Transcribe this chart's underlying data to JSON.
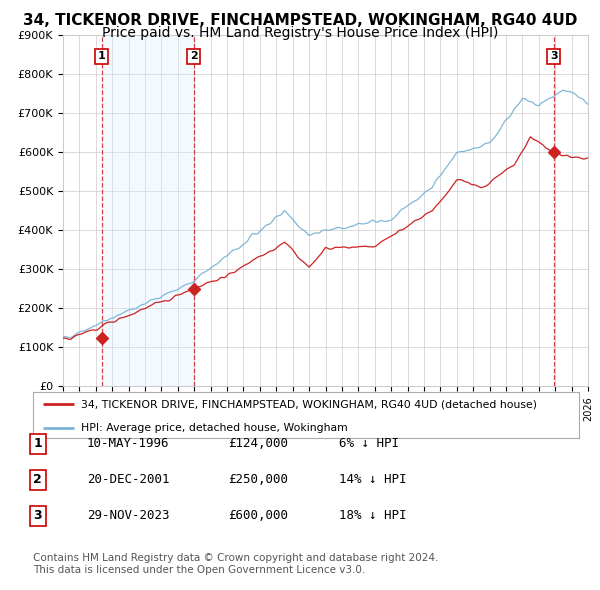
{
  "title": "34, TICKENOR DRIVE, FINCHAMPSTEAD, WOKINGHAM, RG40 4UD",
  "subtitle": "Price paid vs. HM Land Registry's House Price Index (HPI)",
  "ylim": [
    0,
    900000
  ],
  "xlim_start": 1994.0,
  "xlim_end": 2026.0,
  "yticks": [
    0,
    100000,
    200000,
    300000,
    400000,
    500000,
    600000,
    700000,
    800000,
    900000
  ],
  "ytick_labels": [
    "£0",
    "£100K",
    "£200K",
    "£300K",
    "£400K",
    "£500K",
    "£600K",
    "£700K",
    "£800K",
    "£900K"
  ],
  "sale_dates": [
    1996.36,
    2001.97,
    2023.91
  ],
  "sale_prices": [
    124000,
    250000,
    600000
  ],
  "sale_labels": [
    "1",
    "2",
    "3"
  ],
  "hpi_color": "#7ab3d4",
  "price_color": "#cc2222",
  "shade_color": "#ddeeff",
  "dashed_color": "#cc2222",
  "legend_line1": "34, TICKENOR DRIVE, FINCHAMPSTEAD, WOKINGHAM, RG40 4UD (detached house)",
  "legend_line2": "HPI: Average price, detached house, Wokingham",
  "table_rows": [
    [
      "1",
      "10-MAY-1996",
      "£124,000",
      "6% ↓ HPI"
    ],
    [
      "2",
      "20-DEC-2001",
      "£250,000",
      "14% ↓ HPI"
    ],
    [
      "3",
      "29-NOV-2023",
      "£600,000",
      "18% ↓ HPI"
    ]
  ],
  "footnote": "Contains HM Land Registry data © Crown copyright and database right 2024.\nThis data is licensed under the Open Government Licence v3.0.",
  "bg_color": "#ffffff",
  "grid_color": "#cccccc",
  "title_fontsize": 11,
  "subtitle_fontsize": 10,
  "tick_fontsize": 8
}
